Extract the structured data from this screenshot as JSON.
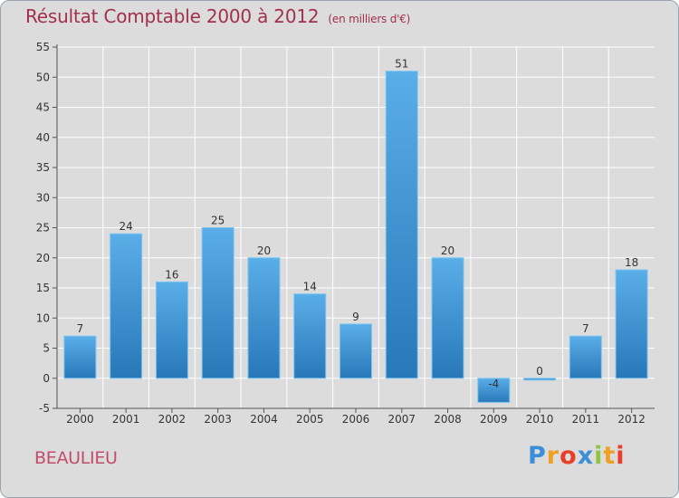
{
  "chart_data": {
    "type": "bar",
    "title": "Résultat Comptable 2000 à 2012",
    "subtitle": "(en milliers d'€)",
    "categories": [
      "2000",
      "2001",
      "2002",
      "2003",
      "2004",
      "2005",
      "2006",
      "2007",
      "2008",
      "2009",
      "2010",
      "2011",
      "2012"
    ],
    "values": [
      7,
      24,
      16,
      25,
      20,
      14,
      9,
      51,
      20,
      -4,
      0,
      7,
      18
    ],
    "value_labels": [
      "7",
      "24",
      "16",
      "25",
      "20",
      "14",
      "9",
      "51",
      "20",
      "-4",
      "0",
      "7",
      "18"
    ],
    "ylim": [
      -5,
      55
    ],
    "yticks": [
      -5,
      0,
      5,
      10,
      15,
      20,
      25,
      30,
      35,
      40,
      45,
      50,
      55
    ],
    "xlabel": "",
    "ylabel": "",
    "grid": true,
    "colors": {
      "bar_top": "#5aaee8",
      "bar_bottom": "#2878b8",
      "grid": "#ffffff",
      "axis": "#555555"
    }
  },
  "footer": {
    "place": "BEAULIEU",
    "logo_letters": [
      "P",
      "r",
      "o",
      "x",
      "i",
      "t",
      "i"
    ]
  }
}
